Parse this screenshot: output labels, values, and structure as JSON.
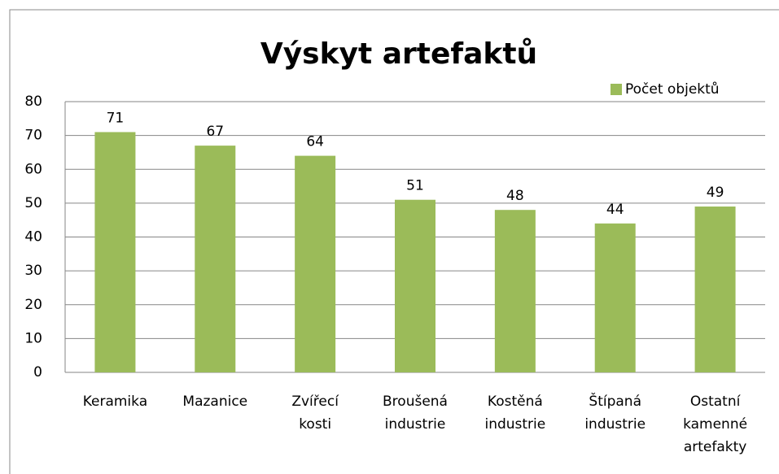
{
  "chart_data": {
    "type": "bar",
    "title": "Výskyt artefaktů",
    "categories": [
      "Keramika",
      "Mazanice",
      "Zvířecí kosti",
      "Broušená industrie",
      "Kostěná industrie",
      "Štípaná industrie",
      "Ostatní kamenné artefakty"
    ],
    "series": [
      {
        "name": "Počet objektů",
        "color": "#9bbb59",
        "values": [
          71,
          67,
          64,
          51,
          48,
          44,
          49
        ]
      }
    ],
    "ylim": [
      0,
      80
    ],
    "yticks": [
      0,
      10,
      20,
      30,
      40,
      50,
      60,
      70,
      80
    ],
    "grid": true,
    "legend": "top-right"
  }
}
